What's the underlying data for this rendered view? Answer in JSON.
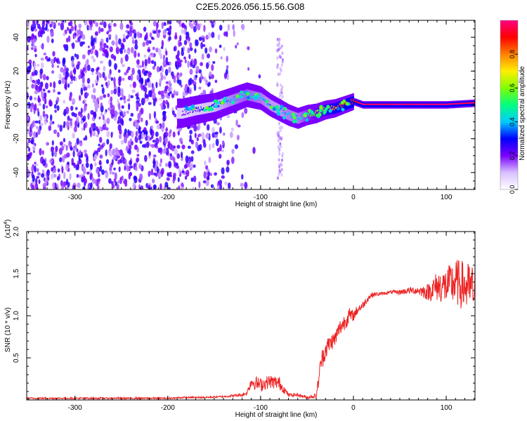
{
  "title": "C2E5.2026.056.15.56.G08",
  "chart_data": [
    {
      "type": "heatmap",
      "title": "C2E5.2026.056.15.56.G08",
      "xlabel": "Height of straight line (km)",
      "ylabel": "Frequency (Hz)",
      "xlim": [
        -352,
        131
      ],
      "ylim": [
        -50,
        50
      ],
      "xticks": [
        -300,
        -200,
        -100,
        0,
        100
      ],
      "yticks": [
        -40,
        -20,
        0,
        20,
        40
      ],
      "colorbar": {
        "label": "Normalized spectral amplitude",
        "range": [
          0,
          1
        ],
        "ticks": [
          "0.0",
          "0.2",
          "0.4",
          "0.6",
          "0.8"
        ],
        "colors": [
          "#ffffff",
          "#d8c0ff",
          "#7a00ff",
          "#0000ff",
          "#00ccff",
          "#00ff80",
          "#80ff00",
          "#ffee00",
          "#ff8000",
          "#ff0000",
          "#ff0080"
        ]
      },
      "signal_trace": {
        "x": [
          -185,
          -170,
          -150,
          -130,
          -115,
          -100,
          -90,
          -80,
          -70,
          -60,
          -50,
          -40,
          -30,
          -20,
          -10,
          0,
          10,
          50,
          100,
          131
        ],
        "frequency": [
          -5,
          -3,
          -1,
          3,
          6,
          4,
          0,
          -3,
          -6,
          -8,
          -6,
          -5,
          -3,
          -2,
          0,
          2,
          0,
          0,
          0,
          1
        ],
        "amplitude": [
          0.2,
          0.25,
          0.3,
          0.4,
          0.45,
          0.4,
          0.35,
          0.35,
          0.4,
          0.4,
          0.5,
          0.6,
          0.75,
          0.8,
          0.85,
          0.9,
          1.0,
          1.0,
          1.0,
          0.95
        ]
      },
      "noise_region": {
        "x_range": [
          -352,
          -140
        ],
        "note_level": "0.2"
      }
    },
    {
      "type": "line",
      "xlabel": "Height of straight line (km)",
      "ylabel": "SNR (10 * v/v)",
      "y_multiplier": "(x10",
      "y_multiplier_exp": "4",
      "y_multiplier_close": ")",
      "xlim": [
        -352,
        131
      ],
      "ylim": [
        0,
        2.0
      ],
      "xticks": [
        -300,
        -200,
        -100,
        0,
        100
      ],
      "yticks": [
        "0.5",
        "1.0",
        "1.5",
        "2.0"
      ],
      "series": [
        {
          "color": "#ee2222",
          "x": [
            -352,
            -300,
            -250,
            -200,
            -180,
            -160,
            -140,
            -120,
            -115,
            -110,
            -100,
            -95,
            -90,
            -80,
            -70,
            -60,
            -50,
            -40,
            -38,
            -35,
            -30,
            -25,
            -20,
            -15,
            -10,
            -5,
            0,
            5,
            10,
            15,
            20,
            30,
            40,
            50,
            60,
            70,
            80,
            90,
            100,
            110,
            120,
            131
          ],
          "y": [
            0.02,
            0.02,
            0.02,
            0.02,
            0.03,
            0.03,
            0.04,
            0.06,
            0.08,
            0.22,
            0.18,
            0.2,
            0.22,
            0.2,
            0.06,
            0.06,
            0.03,
            0.05,
            0.2,
            0.45,
            0.6,
            0.68,
            0.72,
            0.85,
            0.92,
            1.0,
            1.0,
            1.08,
            1.12,
            1.2,
            1.25,
            1.26,
            1.28,
            1.28,
            1.3,
            1.3,
            1.28,
            1.35,
            1.35,
            1.4,
            1.35,
            1.3
          ],
          "noise_amplitude": [
            0.01,
            0.01,
            0.01,
            0.01,
            0.01,
            0.01,
            0.01,
            0.02,
            0.02,
            0.08,
            0.08,
            0.08,
            0.08,
            0.08,
            0.02,
            0.02,
            0.02,
            0.03,
            0.08,
            0.12,
            0.12,
            0.1,
            0.1,
            0.1,
            0.1,
            0.1,
            0.06,
            0.06,
            0.05,
            0.04,
            0.03,
            0.02,
            0.02,
            0.03,
            0.04,
            0.05,
            0.1,
            0.18,
            0.22,
            0.28,
            0.3,
            0.3
          ]
        }
      ]
    }
  ]
}
